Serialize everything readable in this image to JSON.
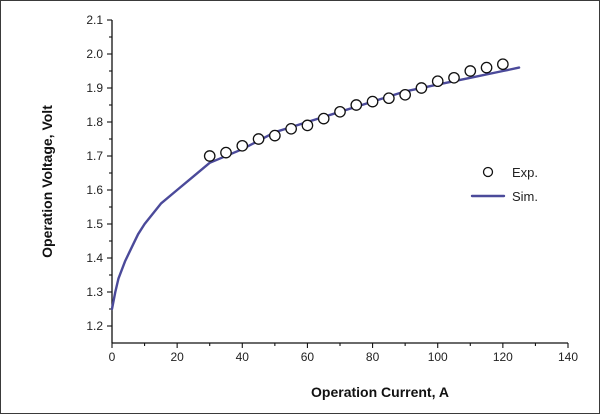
{
  "chart_data": {
    "type": "scatter",
    "title": "",
    "xlabel": "Operation Current, A",
    "ylabel": "Operation Voltage, Volt",
    "xlim": [
      0,
      140
    ],
    "ylim": [
      1.15,
      2.1
    ],
    "x_ticks": [
      "0",
      "20",
      "40",
      "60",
      "80",
      "100",
      "120",
      "140"
    ],
    "y_ticks": [
      "1.2",
      "1.3",
      "1.4",
      "1.5",
      "1.6",
      "1.7",
      "1.8",
      "1.9",
      "2.0",
      "2.1"
    ],
    "grid": false,
    "legend_position": "right",
    "series": [
      {
        "name": "Exp.",
        "style": "open-circle",
        "color": "#111111",
        "x": [
          30,
          35,
          40,
          45,
          50,
          55,
          60,
          65,
          70,
          75,
          80,
          85,
          90,
          95,
          100,
          105,
          110,
          115,
          120
        ],
        "y": [
          1.7,
          1.71,
          1.73,
          1.75,
          1.76,
          1.78,
          1.79,
          1.81,
          1.83,
          1.85,
          1.86,
          1.87,
          1.88,
          1.9,
          1.92,
          1.93,
          1.95,
          1.96,
          1.97
        ]
      },
      {
        "name": "Sim.",
        "style": "line",
        "color": "#4b4a9a",
        "x": [
          0,
          1,
          2,
          4,
          6,
          8,
          10,
          15,
          20,
          25,
          30,
          40,
          50,
          60,
          70,
          80,
          90,
          100,
          110,
          120,
          125
        ],
        "y": [
          1.25,
          1.3,
          1.34,
          1.39,
          1.43,
          1.47,
          1.5,
          1.56,
          1.6,
          1.64,
          1.68,
          1.72,
          1.77,
          1.8,
          1.83,
          1.86,
          1.89,
          1.91,
          1.93,
          1.95,
          1.96
        ]
      }
    ]
  }
}
